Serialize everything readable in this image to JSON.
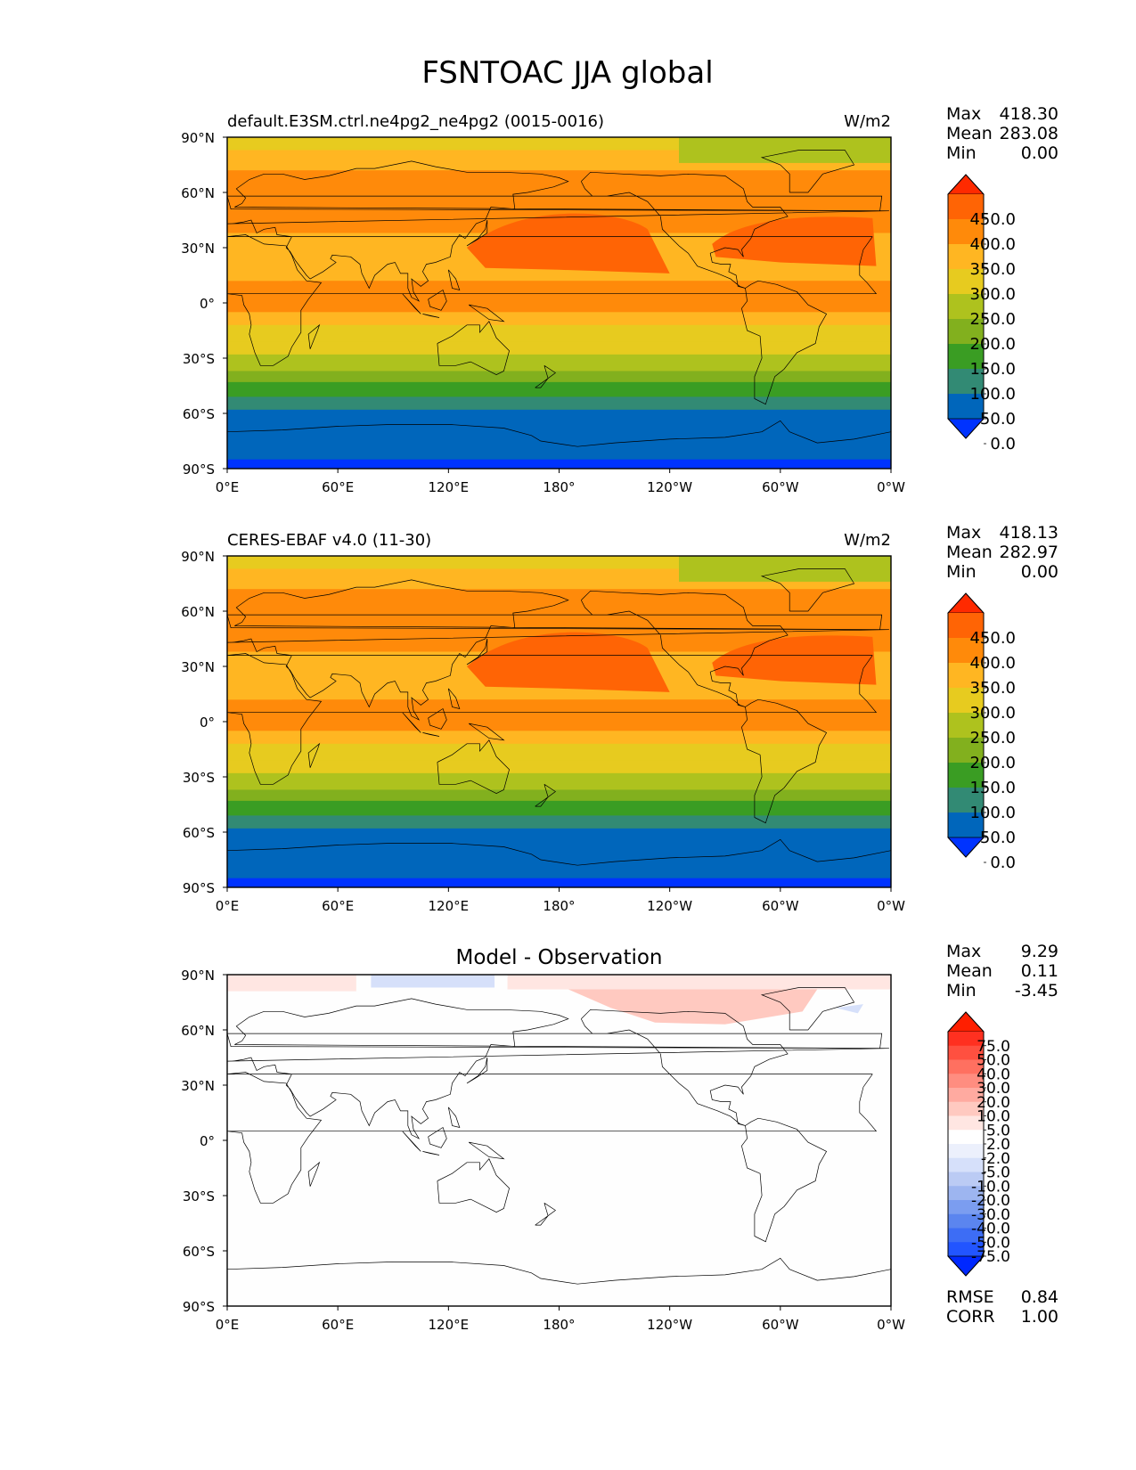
{
  "title": "FSNTOAC JJA global",
  "lat_ticks": [
    "90°N",
    "60°N",
    "30°N",
    "0°",
    "30°S",
    "60°S",
    "90°S"
  ],
  "lon_ticks": [
    "0°E",
    "60°E",
    "120°E",
    "180°",
    "120°W",
    "60°W",
    "0°W"
  ],
  "panels": [
    {
      "id": "test",
      "left_title": "default.E3SM.ctrl.ne4pg2_ne4pg2 (0015-0016)",
      "center_title": "",
      "units": "W/m2",
      "stats": [
        {
          "label": "Max",
          "value": "418.30"
        },
        {
          "label": "Mean",
          "value": "283.08"
        },
        {
          "label": "Min",
          "value": "0.00"
        }
      ],
      "colorbar_labels": [
        "450.0",
        "400.0",
        "350.0",
        "300.0",
        "250.0",
        "200.0",
        "150.0",
        "100.0",
        "50.0",
        "0.0"
      ],
      "extra_stats": []
    },
    {
      "id": "reference",
      "left_title": "CERES-EBAF v4.0 (11-30)",
      "center_title": "",
      "units": "W/m2",
      "stats": [
        {
          "label": "Max",
          "value": "418.13"
        },
        {
          "label": "Mean",
          "value": "282.97"
        },
        {
          "label": "Min",
          "value": "0.00"
        }
      ],
      "colorbar_labels": [
        "450.0",
        "400.0",
        "350.0",
        "300.0",
        "250.0",
        "200.0",
        "150.0",
        "100.0",
        "50.0",
        "0.0"
      ],
      "extra_stats": []
    },
    {
      "id": "diff",
      "left_title": "",
      "center_title": "Model - Observation",
      "units": "",
      "stats": [
        {
          "label": "Max",
          "value": "9.29"
        },
        {
          "label": "Mean",
          "value": "0.11"
        },
        {
          "label": "Min",
          "value": "-3.45"
        }
      ],
      "colorbar_labels": [
        "75.0",
        "50.0",
        "40.0",
        "30.0",
        "20.0",
        "10.0",
        "5.0",
        "2.0",
        "-2.0",
        "-5.0",
        "-10.0",
        "-20.0",
        "-30.0",
        "-40.0",
        "-50.0",
        "-75.0"
      ],
      "extra_stats": [
        {
          "label": "RMSE",
          "value": "0.84"
        },
        {
          "label": "CORR",
          "value": "1.00"
        }
      ]
    }
  ],
  "colors": {
    "main_scale": [
      "#0033ff",
      "#0066bb",
      "#328a74",
      "#3a9d23",
      "#82b01e",
      "#aec21e",
      "#e7cb1f",
      "#ffb622",
      "#ff8a0a",
      "#ff6405",
      "#ff2a00"
    ],
    "diff_scale": [
      "#0028ff",
      "#2255ff",
      "#3d6df5",
      "#5b85ef",
      "#7b9df0",
      "#9db5f0",
      "#bbcbf4",
      "#d6e0fa",
      "#ecf0fc",
      "#ffffff",
      "#ffe6e2",
      "#ffc9c0",
      "#ffaaa0",
      "#ff8d80",
      "#ff7060",
      "#ff5040",
      "#ff3020",
      "#ff1f00"
    ]
  },
  "chart_data": [
    {
      "type": "heatmap",
      "panel": "test",
      "x_range": [
        0,
        360
      ],
      "y_range": [
        -90,
        90
      ],
      "levels": [
        0,
        50,
        100,
        150,
        200,
        250,
        300,
        350,
        400,
        450
      ],
      "units": "W/m2"
    },
    {
      "type": "heatmap",
      "panel": "reference",
      "x_range": [
        0,
        360
      ],
      "y_range": [
        -90,
        90
      ],
      "levels": [
        0,
        50,
        100,
        150,
        200,
        250,
        300,
        350,
        400,
        450
      ],
      "units": "W/m2"
    },
    {
      "type": "heatmap",
      "panel": "diff",
      "x_range": [
        0,
        360
      ],
      "y_range": [
        -90,
        90
      ],
      "levels": [
        -75,
        -50,
        -40,
        -30,
        -20,
        -10,
        -5,
        -2,
        2,
        5,
        10,
        20,
        30,
        40,
        50,
        75
      ]
    }
  ]
}
